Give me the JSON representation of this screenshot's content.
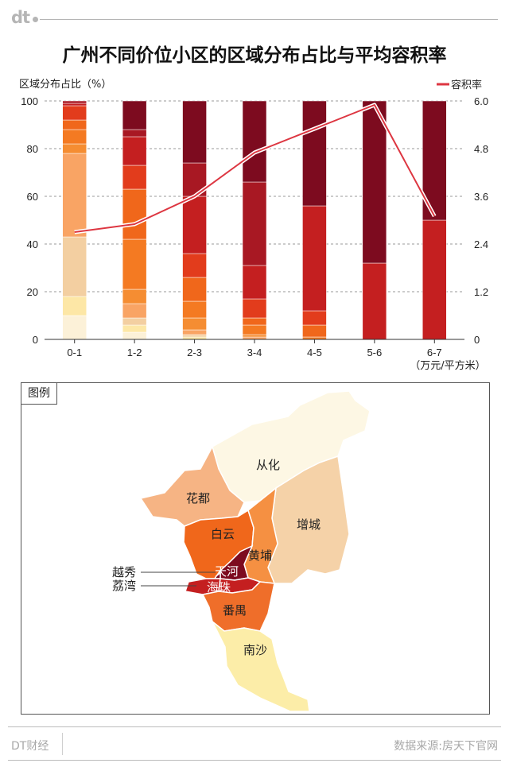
{
  "header": {
    "logo": "dt"
  },
  "chart_data": {
    "type": "bar",
    "title": "广州不同价位小区的区域分布占比与平均容积率",
    "ylabel": "区域分布占比（%）",
    "y2label": "容积率",
    "xunit": "（万元/平方米）",
    "ylim": [
      0,
      100
    ],
    "y2lim": [
      0,
      6.0
    ],
    "yticks": [
      "0",
      "20",
      "40",
      "60",
      "80",
      "100"
    ],
    "y2ticks": [
      "0",
      "1.2",
      "2.4",
      "3.6",
      "4.8",
      "6.0"
    ],
    "categories": [
      "0-1",
      "1-2",
      "2-3",
      "3-4",
      "4-5",
      "5-6",
      "6-7"
    ],
    "stack_order": [
      "南沙",
      "从化",
      "增城",
      "花都",
      "番禺",
      "黄埔",
      "白云",
      "荔湾",
      "海珠",
      "天河",
      "越秀"
    ],
    "series": [
      {
        "name": "南沙",
        "color": "#fcf1d8",
        "values": [
          10,
          3,
          0,
          0,
          0,
          0,
          0
        ]
      },
      {
        "name": "从化",
        "color": "#fde7a6",
        "values": [
          8,
          3,
          1,
          0,
          0,
          0,
          0
        ]
      },
      {
        "name": "增城",
        "color": "#f3cfa1",
        "values": [
          25,
          3,
          1,
          0,
          0,
          0,
          0
        ]
      },
      {
        "name": "花都",
        "color": "#f9a464",
        "values": [
          35,
          6,
          2,
          1,
          0,
          0,
          0
        ]
      },
      {
        "name": "番禺",
        "color": "#f58d32",
        "values": [
          4,
          6,
          5,
          1,
          0,
          0,
          0
        ]
      },
      {
        "name": "黄埔",
        "color": "#f47a22",
        "values": [
          6,
          21,
          7,
          4,
          1,
          0,
          0
        ]
      },
      {
        "name": "白云",
        "color": "#f0671b",
        "values": [
          4,
          21,
          10,
          3,
          5,
          0,
          0
        ]
      },
      {
        "name": "荔湾",
        "color": "#e23c1c",
        "values": [
          6,
          10,
          10,
          8,
          6,
          0,
          0
        ]
      },
      {
        "name": "海珠",
        "color": "#c41f20",
        "values": [
          1,
          12,
          24,
          14,
          44,
          32,
          50
        ]
      },
      {
        "name": "天河",
        "color": "#a81823",
        "values": [
          1,
          3,
          14,
          35,
          0,
          0,
          0
        ]
      },
      {
        "name": "越秀",
        "color": "#7d0b1f",
        "values": [
          0,
          12,
          26,
          34,
          44,
          68,
          50
        ]
      }
    ],
    "line": {
      "name": "容积率",
      "color": "#dd3641",
      "values": [
        2.7,
        2.9,
        3.6,
        4.7,
        5.3,
        5.9,
        3.1
      ]
    }
  },
  "map": {
    "legend_label": "图例",
    "regions": [
      {
        "name": "从化",
        "color": "#fdf7e4"
      },
      {
        "name": "增城",
        "color": "#f5d2a8"
      },
      {
        "name": "花都",
        "color": "#f6b484"
      },
      {
        "name": "白云",
        "color": "#f0671b"
      },
      {
        "name": "黄埔",
        "color": "#f59042"
      },
      {
        "name": "天河",
        "color": "#7d0b1f"
      },
      {
        "name": "越秀",
        "color": "#7d0b1f"
      },
      {
        "name": "荔湾",
        "color": "#c41f20"
      },
      {
        "name": "海珠",
        "color": "#c41f20"
      },
      {
        "name": "番禺",
        "color": "#ef6e2a"
      },
      {
        "name": "南沙",
        "color": "#fceda8"
      }
    ]
  },
  "footer": {
    "brand": "DT财经",
    "source": "数据来源:房天下官网"
  }
}
